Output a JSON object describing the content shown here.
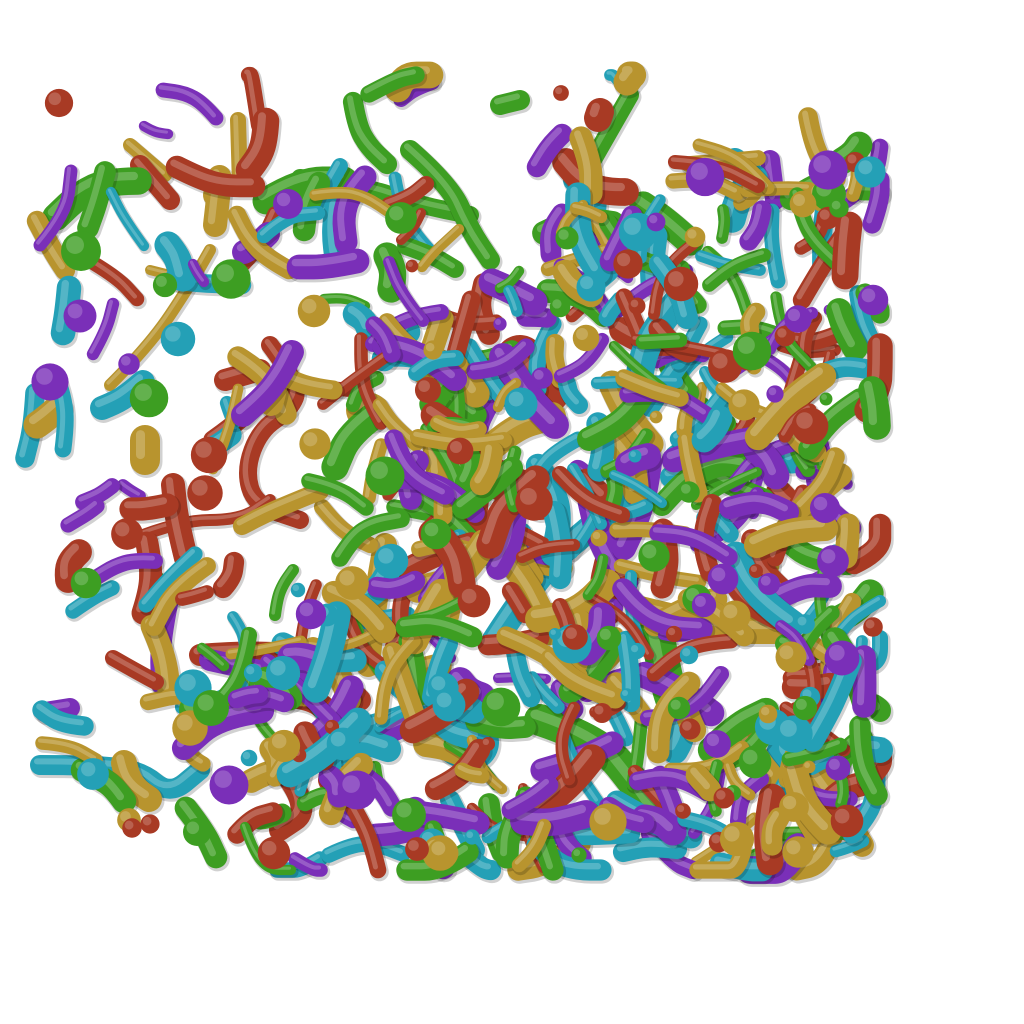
{
  "image": {
    "background": "#ffffff",
    "palette": {
      "red": "#a83a24",
      "purple": "#7a2fb8",
      "green": "#3d9e22",
      "cyan": "#24a0b6",
      "gold": "#b8942e"
    },
    "shading": {
      "highlight": "rgba(255,255,255,0.22)",
      "shadow": "rgba(0,0,0,0.18)"
    }
  }
}
